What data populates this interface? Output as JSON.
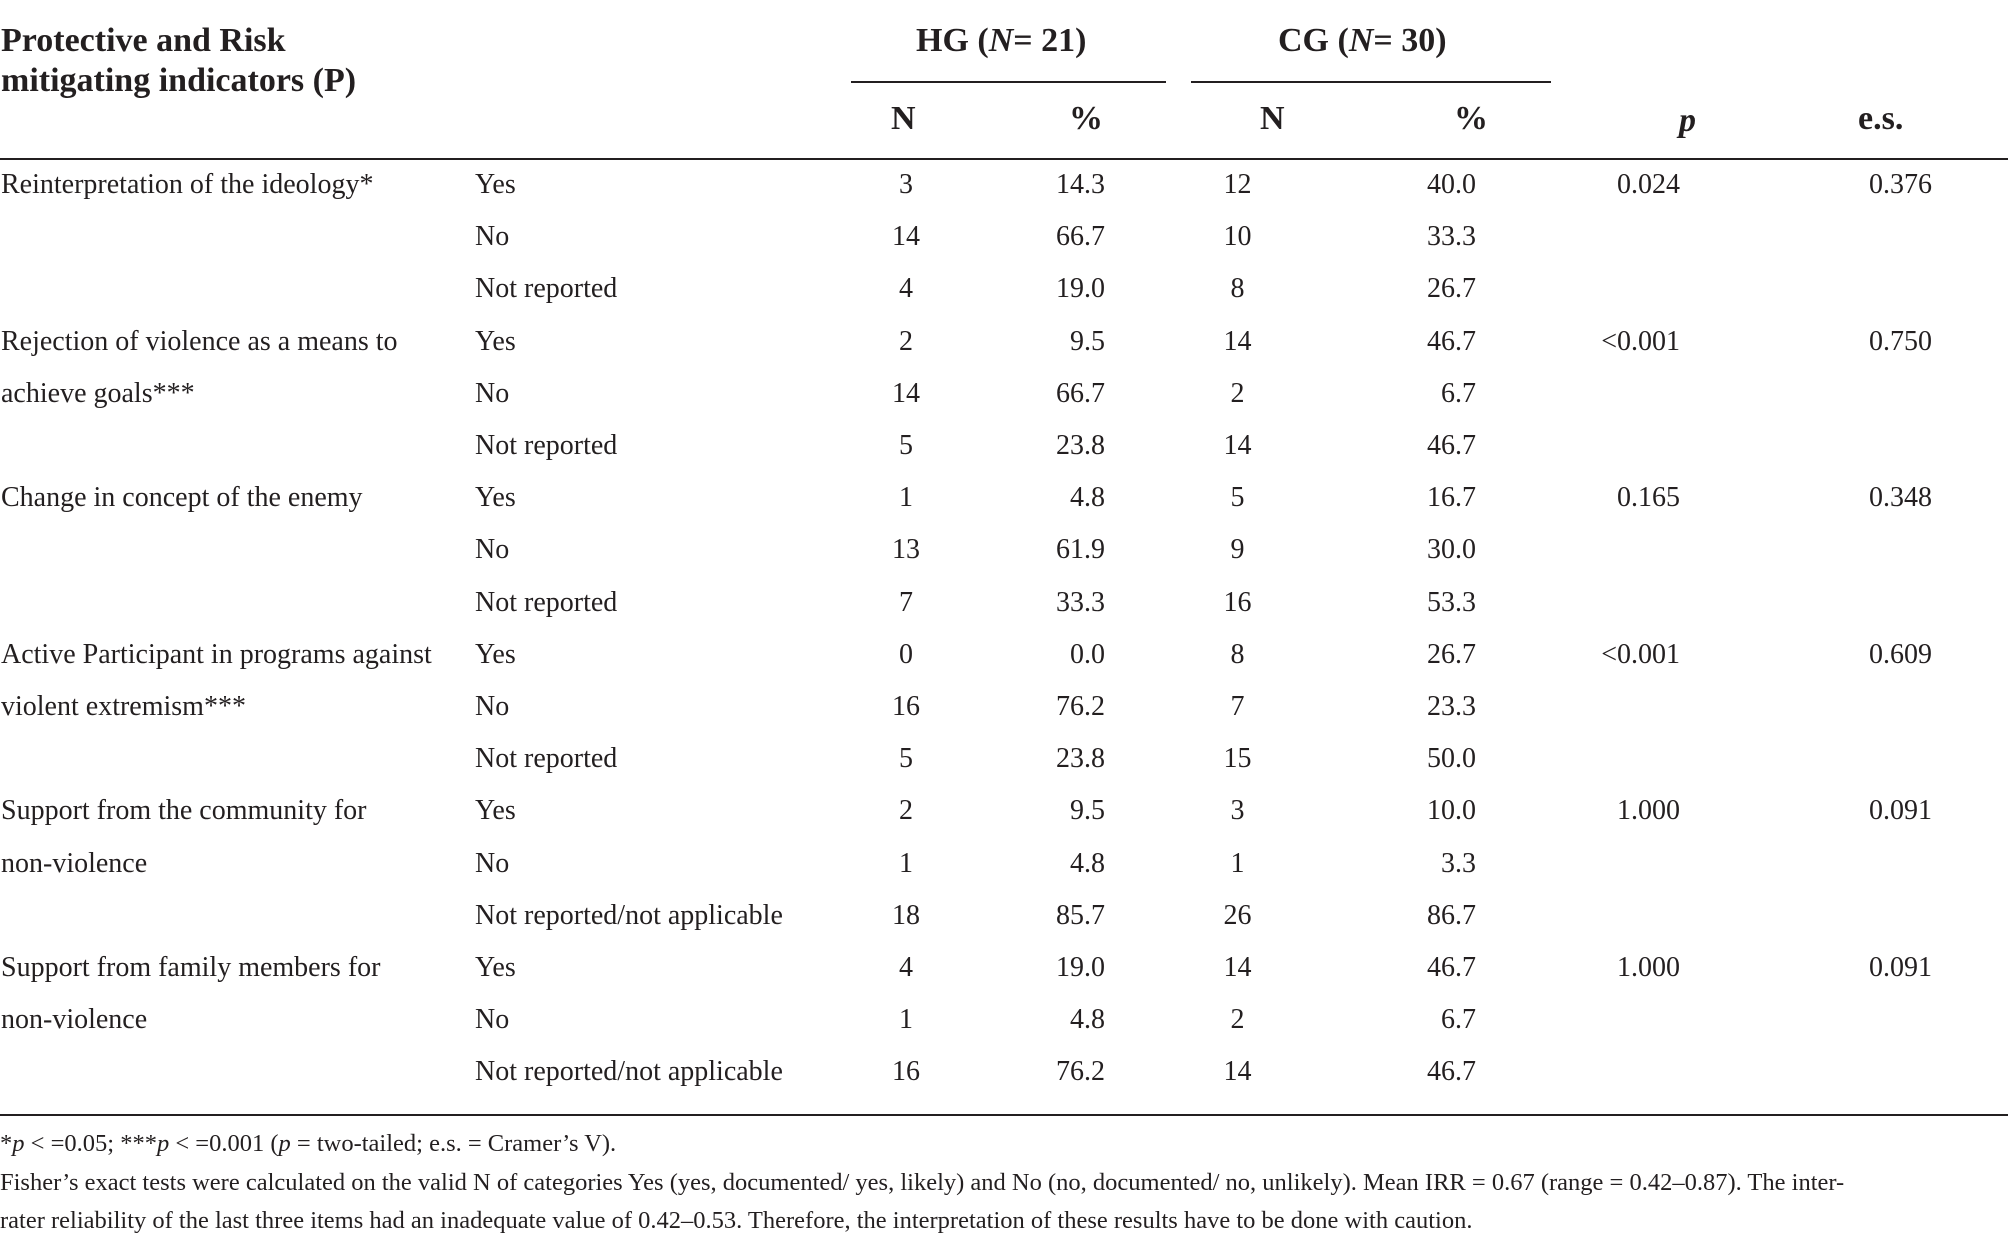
{
  "header": {
    "indicator_title_line1": "Protective and Risk",
    "indicator_title_line2": "mitigating indicators (P)",
    "hg_prefix": "HG (",
    "hg_n_label": "N",
    "hg_n_value": "= 21)",
    "cg_prefix": "CG (",
    "cg_n_label": "N",
    "cg_n_value": "= 30)",
    "n_label": "N",
    "pct_label": "%",
    "p_label": "p",
    "es_label": "e.s."
  },
  "rows": [
    {
      "indicator": "Reinterpretation of the ideology*",
      "category": "Yes",
      "hg_n": "3",
      "hg_pct": "14.3",
      "cg_n": "12",
      "cg_pct": "40.0",
      "p": "0.024",
      "es": "0.376"
    },
    {
      "indicator": "",
      "category": "No",
      "hg_n": "14",
      "hg_pct": "66.7",
      "cg_n": "10",
      "cg_pct": "33.3",
      "p": "",
      "es": ""
    },
    {
      "indicator": "",
      "category": "Not reported",
      "hg_n": "4",
      "hg_pct": "19.0",
      "cg_n": "8",
      "cg_pct": "26.7",
      "p": "",
      "es": ""
    },
    {
      "indicator": "Rejection of violence as a means to",
      "category": "Yes",
      "hg_n": "2",
      "hg_pct": "9.5",
      "cg_n": "14",
      "cg_pct": "46.7",
      "p": "<0.001",
      "es": "0.750"
    },
    {
      "indicator": "achieve goals***",
      "category": "No",
      "hg_n": "14",
      "hg_pct": "66.7",
      "cg_n": "2",
      "cg_pct": "6.7",
      "p": "",
      "es": ""
    },
    {
      "indicator": "",
      "category": "Not reported",
      "hg_n": "5",
      "hg_pct": "23.8",
      "cg_n": "14",
      "cg_pct": "46.7",
      "p": "",
      "es": ""
    },
    {
      "indicator": "Change in concept of the enemy",
      "category": "Yes",
      "hg_n": "1",
      "hg_pct": "4.8",
      "cg_n": "5",
      "cg_pct": "16.7",
      "p": "0.165",
      "es": "0.348"
    },
    {
      "indicator": "",
      "category": "No",
      "hg_n": "13",
      "hg_pct": "61.9",
      "cg_n": "9",
      "cg_pct": "30.0",
      "p": "",
      "es": ""
    },
    {
      "indicator": "",
      "category": "Not reported",
      "hg_n": "7",
      "hg_pct": "33.3",
      "cg_n": "16",
      "cg_pct": "53.3",
      "p": "",
      "es": ""
    },
    {
      "indicator": "Active Participant in programs against",
      "category": "Yes",
      "hg_n": "0",
      "hg_pct": "0.0",
      "cg_n": "8",
      "cg_pct": "26.7",
      "p": "<0.001",
      "es": "0.609"
    },
    {
      "indicator": "violent extremism***",
      "category": "No",
      "hg_n": "16",
      "hg_pct": "76.2",
      "cg_n": "7",
      "cg_pct": "23.3",
      "p": "",
      "es": ""
    },
    {
      "indicator": "",
      "category": "Not reported",
      "hg_n": "5",
      "hg_pct": "23.8",
      "cg_n": "15",
      "cg_pct": "50.0",
      "p": "",
      "es": ""
    },
    {
      "indicator": "Support from the community for",
      "category": "Yes",
      "hg_n": "2",
      "hg_pct": "9.5",
      "cg_n": "3",
      "cg_pct": "10.0",
      "p": "1.000",
      "es": "0.091"
    },
    {
      "indicator": "non-violence",
      "category": "No",
      "hg_n": "1",
      "hg_pct": "4.8",
      "cg_n": "1",
      "cg_pct": "3.3",
      "p": "",
      "es": ""
    },
    {
      "indicator": "",
      "category": "Not reported/not applicable",
      "hg_n": "18",
      "hg_pct": "85.7",
      "cg_n": "26",
      "cg_pct": "86.7",
      "p": "",
      "es": ""
    },
    {
      "indicator": "Support from family members for",
      "category": "Yes",
      "hg_n": "4",
      "hg_pct": "19.0",
      "cg_n": "14",
      "cg_pct": "46.7",
      "p": "1.000",
      "es": "0.091"
    },
    {
      "indicator": "non-violence",
      "category": "No",
      "hg_n": "1",
      "hg_pct": "4.8",
      "cg_n": "2",
      "cg_pct": "6.7",
      "p": "",
      "es": ""
    },
    {
      "indicator": "",
      "category": "Not reported/not applicable",
      "hg_n": "16",
      "hg_pct": "76.2",
      "cg_n": "14",
      "cg_pct": "46.7",
      "p": "",
      "es": ""
    }
  ],
  "footnotes": {
    "sig_p1": "p",
    "sig_part1": " < =0.05; ***",
    "sig_p2": "p",
    "sig_part2": " < =0.001 (",
    "sig_p3": "p",
    "sig_part3": " = two-tailed; e.s. = Cramer’s V).",
    "line2": "Fisher’s exact tests were calculated on the valid N of categories Yes (yes, documented/ yes, likely) and No (no, documented/ no, unlikely). Mean IRR = 0.67 (range = 0.42–0.87). The inter-",
    "line3": "rater reliability of the last three items had an inadequate value of 0.42–0.53. Therefore, the interpretation of these results have to be done with caution."
  }
}
